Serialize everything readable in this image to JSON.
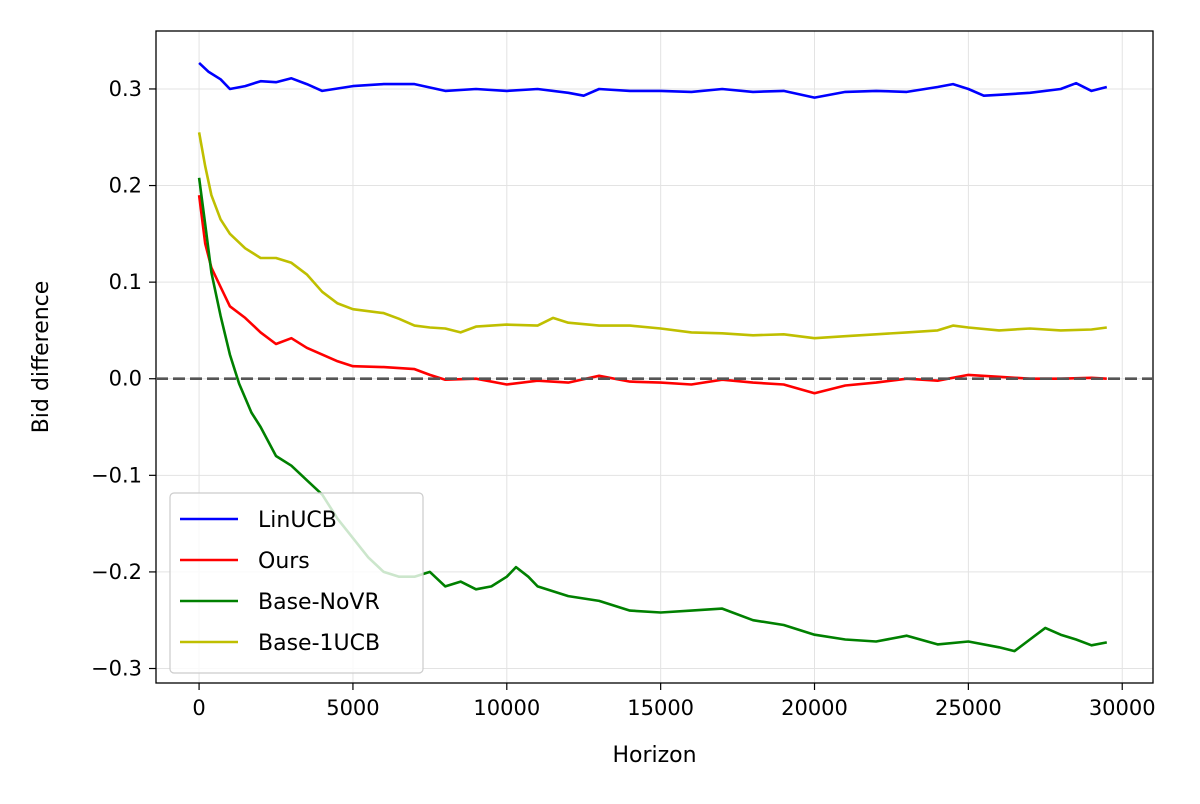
{
  "chart_data": {
    "type": "line",
    "title": "",
    "xlabel": "Horizon",
    "ylabel": "Bid difference",
    "xlim": [
      -1400,
      31000
    ],
    "ylim": [
      -0.315,
      0.36
    ],
    "x_ticks": [
      0,
      5000,
      10000,
      15000,
      20000,
      25000,
      30000
    ],
    "x_tick_labels": [
      "0",
      "5000",
      "10000",
      "15000",
      "20000",
      "25000",
      "30000"
    ],
    "y_ticks": [
      -0.3,
      -0.2,
      -0.1,
      0.0,
      0.1,
      0.2,
      0.3
    ],
    "y_tick_labels": [
      "−0.3",
      "−0.2",
      "−0.1",
      "0.0",
      "0.1",
      "0.2",
      "0.3"
    ],
    "grid": true,
    "legend_position": "lower-left",
    "reference_line": {
      "y": 0.0,
      "style": "dashed",
      "color": "#555555"
    },
    "series": [
      {
        "name": "LinUCB",
        "color": "#0000ff",
        "x": [
          0,
          300,
          700,
          1000,
          1500,
          2000,
          2500,
          3000,
          3500,
          4000,
          5000,
          6000,
          7000,
          8000,
          9000,
          10000,
          11000,
          12000,
          12500,
          13000,
          14000,
          15000,
          16000,
          17000,
          18000,
          19000,
          20000,
          21000,
          22000,
          23000,
          24000,
          24500,
          25000,
          25500,
          26000,
          27000,
          28000,
          28500,
          29000,
          29500
        ],
        "y": [
          0.327,
          0.318,
          0.31,
          0.3,
          0.303,
          0.308,
          0.307,
          0.311,
          0.305,
          0.298,
          0.303,
          0.305,
          0.305,
          0.298,
          0.3,
          0.298,
          0.3,
          0.296,
          0.293,
          0.3,
          0.298,
          0.298,
          0.297,
          0.3,
          0.297,
          0.298,
          0.291,
          0.297,
          0.298,
          0.297,
          0.302,
          0.305,
          0.3,
          0.293,
          0.294,
          0.296,
          0.3,
          0.306,
          0.298,
          0.302
        ]
      },
      {
        "name": "Ours",
        "color": "#ff0000",
        "x": [
          0,
          200,
          400,
          700,
          1000,
          1500,
          2000,
          2500,
          3000,
          3500,
          4000,
          4500,
          5000,
          6000,
          7000,
          7500,
          8000,
          9000,
          10000,
          11000,
          12000,
          13000,
          14000,
          15000,
          16000,
          17000,
          18000,
          19000,
          20000,
          21000,
          22000,
          23000,
          24000,
          25000,
          26000,
          27000,
          28000,
          29000,
          29500
        ],
        "y": [
          0.19,
          0.14,
          0.115,
          0.095,
          0.075,
          0.063,
          0.048,
          0.036,
          0.042,
          0.032,
          0.025,
          0.018,
          0.013,
          0.012,
          0.01,
          0.004,
          -0.001,
          0.0,
          -0.006,
          -0.002,
          -0.004,
          0.003,
          -0.003,
          -0.004,
          -0.006,
          -0.001,
          -0.004,
          -0.006,
          -0.015,
          -0.007,
          -0.004,
          0.0,
          -0.002,
          0.004,
          0.002,
          0.0,
          0.0,
          0.001,
          0.0
        ]
      },
      {
        "name": "Base-NoVR",
        "color": "#008000",
        "x": [
          0,
          200,
          400,
          700,
          1000,
          1300,
          1700,
          2000,
          2500,
          3000,
          3500,
          4000,
          4500,
          5000,
          5500,
          6000,
          6500,
          7000,
          7500,
          8000,
          8500,
          9000,
          9500,
          10000,
          10300,
          10700,
          11000,
          12000,
          13000,
          14000,
          15000,
          16000,
          17000,
          18000,
          19000,
          20000,
          21000,
          22000,
          23000,
          24000,
          25000,
          26000,
          26500,
          27000,
          27500,
          28000,
          28500,
          29000,
          29500
        ],
        "y": [
          0.208,
          0.16,
          0.11,
          0.065,
          0.025,
          -0.005,
          -0.035,
          -0.05,
          -0.08,
          -0.09,
          -0.105,
          -0.12,
          -0.145,
          -0.165,
          -0.185,
          -0.2,
          -0.205,
          -0.205,
          -0.2,
          -0.215,
          -0.21,
          -0.218,
          -0.215,
          -0.205,
          -0.195,
          -0.205,
          -0.215,
          -0.225,
          -0.23,
          -0.24,
          -0.242,
          -0.24,
          -0.238,
          -0.25,
          -0.255,
          -0.265,
          -0.27,
          -0.272,
          -0.266,
          -0.275,
          -0.272,
          -0.278,
          -0.282,
          -0.27,
          -0.258,
          -0.265,
          -0.27,
          -0.276,
          -0.273
        ]
      },
      {
        "name": "Base-1UCB",
        "color": "#bfbf00",
        "x": [
          0,
          200,
          400,
          700,
          1000,
          1500,
          2000,
          2500,
          3000,
          3500,
          4000,
          4500,
          5000,
          6000,
          6500,
          7000,
          7500,
          8000,
          8500,
          9000,
          10000,
          11000,
          11500,
          12000,
          13000,
          14000,
          15000,
          16000,
          17000,
          18000,
          19000,
          20000,
          21000,
          22000,
          23000,
          24000,
          24500,
          25000,
          26000,
          27000,
          28000,
          29000,
          29500
        ],
        "y": [
          0.255,
          0.22,
          0.19,
          0.165,
          0.15,
          0.135,
          0.125,
          0.125,
          0.12,
          0.108,
          0.09,
          0.078,
          0.072,
          0.068,
          0.062,
          0.055,
          0.053,
          0.052,
          0.048,
          0.054,
          0.056,
          0.055,
          0.063,
          0.058,
          0.055,
          0.055,
          0.052,
          0.048,
          0.047,
          0.045,
          0.046,
          0.042,
          0.044,
          0.046,
          0.048,
          0.05,
          0.055,
          0.053,
          0.05,
          0.052,
          0.05,
          0.051,
          0.053
        ]
      }
    ]
  }
}
